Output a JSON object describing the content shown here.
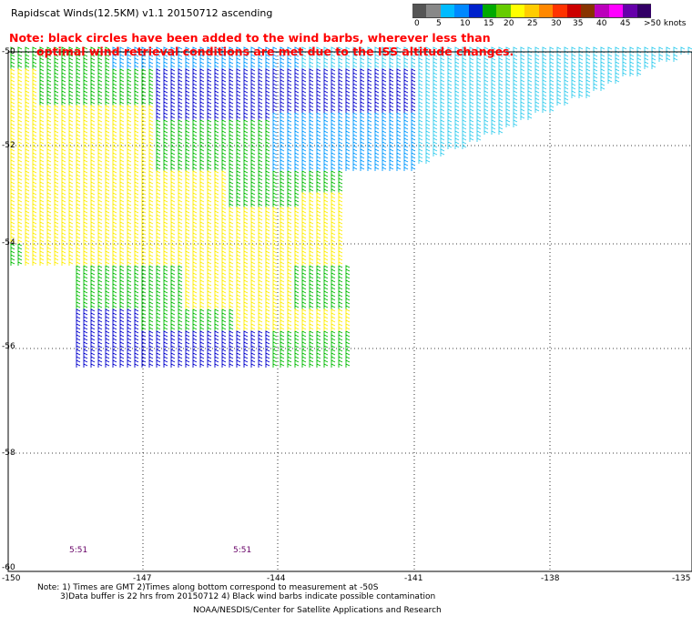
{
  "title": "Rapidscat Winds(12.5KM) v1.1 20150712 ascending",
  "note": {
    "line1": "Note: black circles have been added to the wind barbs, wherever less than",
    "line2": "optimal wind retrieval conditions are met due to the ISS altitude changes."
  },
  "legend": {
    "labels": [
      "0",
      "5",
      "10",
      "15",
      "20",
      "25",
      "30",
      "35",
      "40",
      "45",
      ">50 knots"
    ],
    "colors": [
      "#555555",
      "#888888",
      "#00bbff",
      "#0088ff",
      "#0022cc",
      "#00aa00",
      "#66cc00",
      "#ffff00",
      "#ffcc00",
      "#ff8800",
      "#ff3300",
      "#cc0000",
      "#883300",
      "#bb00bb",
      "#ff00ff",
      "#6600aa",
      "#330066"
    ]
  },
  "map": {
    "lat_labels": [
      "-50",
      "-52",
      "-54",
      "-56",
      "-58",
      "-60"
    ],
    "lon_labels": [
      "-150",
      "-147",
      "-144",
      "-141",
      "-138",
      "-135"
    ],
    "times": [
      "5:51",
      "5:51"
    ]
  },
  "footer": {
    "line1": "Note: 1) Times are GMT 2)Times along bottom correspond to measurement at -50S",
    "line2": "3)Data buffer is 22 hrs from 20150712 4) Black wind barbs indicate possible contamination",
    "credit": "NOAA/NESDIS/Center for Satellite Applications and Research"
  }
}
